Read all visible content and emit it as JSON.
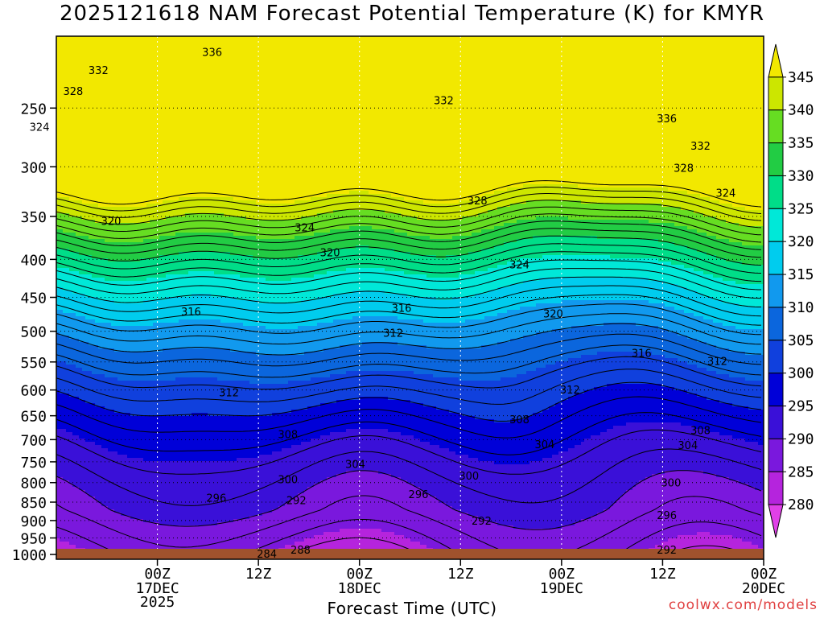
{
  "title": "2025121618 NAM Forecast Potential Temperature (K) for KMYR",
  "credit": "coolwx.com/models",
  "chart_data": {
    "type": "contour",
    "title": "2025121618 NAM Forecast Potential Temperature (K) for KMYR",
    "xlabel": "Forecast Time (UTC)",
    "ylabel": "",
    "y_scale": "log",
    "ylim": [
      1015,
      200
    ],
    "yticks": [
      250,
      300,
      350,
      400,
      450,
      500,
      550,
      600,
      650,
      700,
      750,
      800,
      850,
      900,
      950,
      1000
    ],
    "xlim_hours": [
      -6,
      78
    ],
    "xticks": [
      {
        "hour": 6,
        "label": "00Z",
        "date": "17DEC",
        "year": "2025"
      },
      {
        "hour": 18,
        "label": "12Z",
        "date": "",
        "year": ""
      },
      {
        "hour": 30,
        "label": "00Z",
        "date": "18DEC",
        "year": ""
      },
      {
        "hour": 42,
        "label": "12Z",
        "date": "",
        "year": ""
      },
      {
        "hour": 54,
        "label": "00Z",
        "date": "19DEC",
        "year": ""
      },
      {
        "hour": 66,
        "label": "12Z",
        "date": "",
        "year": ""
      },
      {
        "hour": 78,
        "label": "00Z",
        "date": "20DEC",
        "year": ""
      }
    ],
    "colorbar": {
      "labels": [
        "345",
        "340",
        "335",
        "330",
        "325",
        "320",
        "315",
        "310",
        "305",
        "300",
        "295",
        "290",
        "285",
        "280"
      ],
      "colors": [
        "#f2e800",
        "#cce600",
        "#66dd22",
        "#22cc44",
        "#00dd88",
        "#00e8d8",
        "#00ccee",
        "#1199ee",
        "#0b66dd",
        "#1040dd",
        "#0000d8",
        "#3a10d8",
        "#7a18dd",
        "#b524dd",
        "#e040e8"
      ]
    },
    "contour_labels": [
      {
        "value": "336",
        "hour": 12.5,
        "p": 210
      },
      {
        "value": "332",
        "hour": -1,
        "p": 222
      },
      {
        "value": "332",
        "hour": 40,
        "p": 244
      },
      {
        "value": "336",
        "hour": 66.5,
        "p": 258
      },
      {
        "value": "332",
        "hour": 70.5,
        "p": 281
      },
      {
        "value": "328",
        "hour": -4,
        "p": 237
      },
      {
        "value": "328",
        "hour": 44,
        "p": 333
      },
      {
        "value": "328",
        "hour": 68.5,
        "p": 301
      },
      {
        "value": "324",
        "hour": -8,
        "p": 265
      },
      {
        "value": "324",
        "hour": 23.5,
        "p": 362
      },
      {
        "value": "324",
        "hour": 49,
        "p": 406
      },
      {
        "value": "324",
        "hour": 73.5,
        "p": 325
      },
      {
        "value": "320",
        "hour": 0.5,
        "p": 355
      },
      {
        "value": "320",
        "hour": 26.5,
        "p": 391
      },
      {
        "value": "320",
        "hour": 53,
        "p": 473
      },
      {
        "value": "316",
        "hour": 10,
        "p": 470
      },
      {
        "value": "316",
        "hour": 35,
        "p": 465
      },
      {
        "value": "316",
        "hour": 63.5,
        "p": 535
      },
      {
        "value": "312",
        "hour": 34,
        "p": 502
      },
      {
        "value": "312",
        "hour": 14.5,
        "p": 604
      },
      {
        "value": "312",
        "hour": 55,
        "p": 599
      },
      {
        "value": "312",
        "hour": 72.5,
        "p": 548
      },
      {
        "value": "308",
        "hour": 21.5,
        "p": 688
      },
      {
        "value": "308",
        "hour": 49,
        "p": 657
      },
      {
        "value": "308",
        "hour": 70.5,
        "p": 680
      },
      {
        "value": "304",
        "hour": 52,
        "p": 710
      },
      {
        "value": "304",
        "hour": 29.5,
        "p": 755
      },
      {
        "value": "304",
        "hour": 69,
        "p": 712
      },
      {
        "value": "300",
        "hour": 21.5,
        "p": 792
      },
      {
        "value": "300",
        "hour": 43,
        "p": 783
      },
      {
        "value": "300",
        "hour": 67,
        "p": 800
      },
      {
        "value": "296",
        "hour": 13,
        "p": 838
      },
      {
        "value": "296",
        "hour": 37,
        "p": 829
      },
      {
        "value": "296",
        "hour": 66.5,
        "p": 885
      },
      {
        "value": "292",
        "hour": 22.5,
        "p": 845
      },
      {
        "value": "292",
        "hour": 44.5,
        "p": 900
      },
      {
        "value": "292",
        "hour": 66.5,
        "p": 985
      },
      {
        "value": "288",
        "hour": 23,
        "p": 985
      },
      {
        "value": "284",
        "hour": 19,
        "p": 998
      }
    ]
  }
}
